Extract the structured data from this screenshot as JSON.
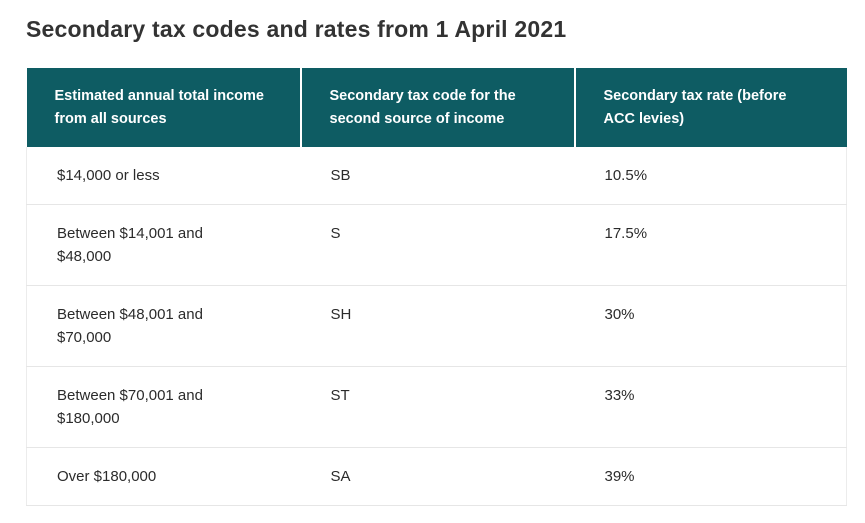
{
  "page": {
    "title": "Secondary tax codes and rates from 1 April 2021"
  },
  "table": {
    "headers": [
      "Estimated annual total income from all sources",
      "Secondary tax code for the second source of income",
      "Secondary tax rate (before ACC levies)"
    ],
    "rows": [
      {
        "income": "$14,000 or less",
        "code": "SB",
        "rate": "10.5%"
      },
      {
        "income": "Between $14,001 and $48,000",
        "code": "S",
        "rate": "17.5%"
      },
      {
        "income": "Between $48,001 and $70,000",
        "code": "SH",
        "rate": "30%"
      },
      {
        "income": "Between $70,001 and $180,000",
        "code": "ST",
        "rate": "33%"
      },
      {
        "income": "Over $180,000",
        "code": "SA",
        "rate": "39%"
      }
    ]
  },
  "colors": {
    "header_bg": "#0e5c63",
    "header_text": "#ffffff",
    "body_text": "#2b2b2b",
    "divider": "#e6e6e6"
  }
}
